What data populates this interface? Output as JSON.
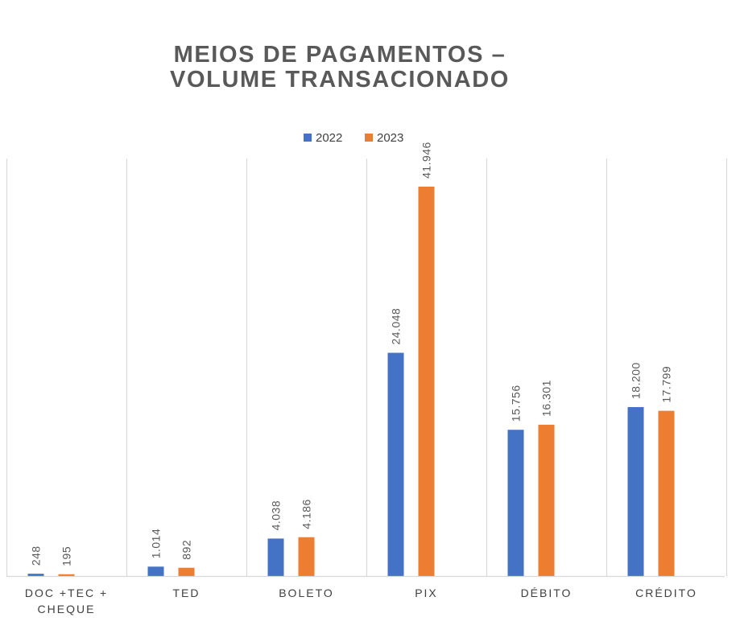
{
  "chart_data": {
    "type": "bar",
    "title_lines": [
      "MEIOS DE PAGAMENTOS –",
      "VOLUME TRANSACIONADO"
    ],
    "categories": [
      [
        "DOC +TEC +",
        "CHEQUE"
      ],
      [
        "TED"
      ],
      [
        "BOLETO"
      ],
      [
        "PIX"
      ],
      [
        "DÉBITO"
      ],
      [
        "CRÉDITO"
      ]
    ],
    "series": [
      {
        "name": "2022",
        "color": "#4472C4",
        "values": [
          248,
          1014,
          4038,
          24048,
          15756,
          18200
        ],
        "labels": [
          "248",
          "1.014",
          "4.038",
          "24.048",
          "15.756",
          "18.200"
        ]
      },
      {
        "name": "2023",
        "color": "#ED7D31",
        "values": [
          195,
          892,
          4186,
          41946,
          16301,
          17799
        ],
        "labels": [
          "195",
          "892",
          "4.186",
          "41.946",
          "16.301",
          "17.799"
        ]
      }
    ],
    "ylim": [
      0,
      45000
    ],
    "grid": "vertical category dividers",
    "legend": "top-center"
  }
}
